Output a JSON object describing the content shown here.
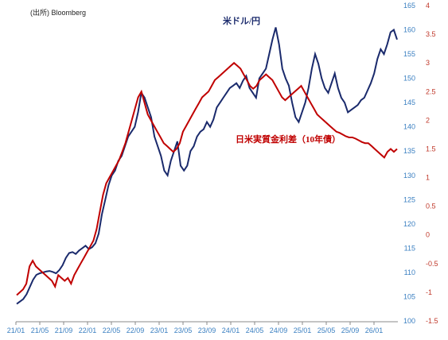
{
  "chart_data": {
    "type": "line",
    "source": "(出所) Bloomberg",
    "x_ticks": [
      "21/01",
      "21/05",
      "21/09",
      "22/01",
      "22/05",
      "22/09",
      "23/01",
      "23/05",
      "23/09",
      "24/01",
      "24/05",
      "24/09",
      "25/01",
      "25/05",
      "25/09",
      "26/01"
    ],
    "left_axis": {
      "ylim": [
        100,
        165
      ],
      "ticks": [
        100,
        105,
        110,
        115,
        120,
        125,
        130,
        135,
        140,
        145,
        150,
        155,
        160,
        165
      ]
    },
    "right_axis": {
      "ylim": [
        -1.5,
        4
      ],
      "ticks": [
        "-1.5",
        "-1",
        "-0.5",
        "0",
        "0.5",
        "1",
        "1.5",
        "2",
        "2.5",
        "3",
        "3.5",
        "4"
      ]
    },
    "series": [
      {
        "name": "米ドル/円",
        "axis": "left",
        "color": "#1a2a6c",
        "values": [
          103.5,
          104,
          104.5,
          105.5,
          107,
          108.5,
          109.5,
          109.8,
          110,
          110.2,
          110.3,
          110.1,
          109.8,
          110.5,
          111.5,
          113,
          114,
          114.2,
          113.8,
          114.5,
          115,
          115.5,
          114.8,
          115.2,
          116,
          118,
          122,
          125,
          128,
          130,
          131,
          133,
          134,
          136,
          138,
          139,
          140,
          143,
          147,
          146,
          144,
          142,
          138,
          136,
          134,
          131,
          130,
          133,
          135,
          137,
          132,
          131,
          132,
          135,
          136,
          138,
          139,
          139.5,
          141,
          140,
          141.5,
          144,
          145,
          146,
          147,
          148,
          148.5,
          149,
          148,
          149.5,
          150.5,
          148,
          147,
          146,
          150,
          151,
          152,
          155,
          158,
          160.5,
          157,
          152,
          150,
          148.5,
          145,
          142,
          141,
          143,
          145,
          148,
          152,
          155,
          153,
          150,
          148,
          147,
          149,
          151,
          148,
          146,
          145,
          143,
          143.5,
          144,
          144.5,
          145.5,
          146,
          147.5,
          149,
          151,
          154,
          156,
          155,
          157,
          159.5,
          160,
          158
        ]
      },
      {
        "name": "日米実質金利差（10年債）",
        "axis": "right",
        "color": "#c00000",
        "values": [
          -1.05,
          -1,
          -0.95,
          -0.85,
          -0.55,
          -0.45,
          -0.55,
          -0.6,
          -0.65,
          -0.7,
          -0.75,
          -0.8,
          -0.9,
          -0.7,
          -0.75,
          -0.8,
          -0.75,
          -0.85,
          -0.7,
          -0.6,
          -0.5,
          -0.4,
          -0.3,
          -0.2,
          -0.1,
          0.1,
          0.4,
          0.7,
          0.9,
          1.0,
          1.1,
          1.2,
          1.3,
          1.45,
          1.6,
          1.8,
          2.0,
          2.2,
          2.4,
          2.5,
          2.3,
          2.1,
          2.0,
          1.9,
          1.8,
          1.7,
          1.6,
          1.55,
          1.5,
          1.45,
          1.5,
          1.6,
          1.8,
          1.9,
          2.0,
          2.1,
          2.2,
          2.3,
          2.4,
          2.45,
          2.5,
          2.6,
          2.7,
          2.75,
          2.8,
          2.85,
          2.9,
          2.95,
          3.0,
          2.95,
          2.9,
          2.8,
          2.7,
          2.6,
          2.55,
          2.6,
          2.7,
          2.75,
          2.8,
          2.75,
          2.7,
          2.6,
          2.5,
          2.4,
          2.35,
          2.4,
          2.45,
          2.5,
          2.55,
          2.6,
          2.5,
          2.4,
          2.3,
          2.2,
          2.1,
          2.05,
          2.0,
          1.95,
          1.9,
          1.85,
          1.8,
          1.78,
          1.75,
          1.72,
          1.7,
          1.7,
          1.68,
          1.65,
          1.62,
          1.6,
          1.6,
          1.55,
          1.5,
          1.45,
          1.4,
          1.35,
          1.45,
          1.5,
          1.45,
          1.5
        ]
      }
    ],
    "grid": false
  }
}
